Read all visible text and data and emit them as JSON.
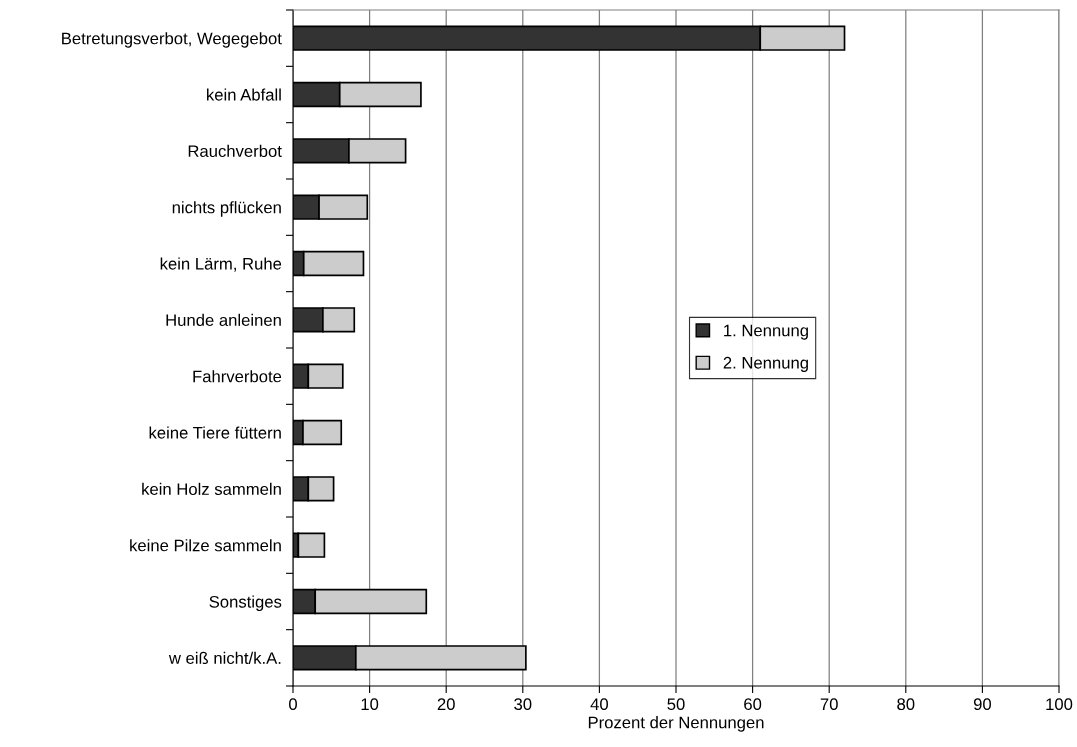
{
  "chart_data": {
    "type": "bar",
    "orientation": "horizontal",
    "stacked": true,
    "xlabel": "Prozent der Nennungen",
    "categories": [
      "Betretungsverbot, Wegegebot",
      "kein Abfall",
      "Rauchverbot",
      "nichts pflücken",
      "kein Lärm, Ruhe",
      "Hunde anleinen",
      "Fahrverbote",
      "keine Tiere füttern",
      "kein Holz sammeln",
      "keine Pilze sammeln",
      "Sonstiges",
      "w eiß nicht/k.A."
    ],
    "series": [
      {
        "name": "1. Nennung",
        "color": "#333333",
        "values": [
          61.0,
          6.1,
          7.3,
          3.4,
          1.4,
          3.9,
          2.0,
          1.3,
          2.0,
          0.7,
          2.9,
          8.2
        ]
      },
      {
        "name": "2. Nennung",
        "color": "#cccccc",
        "values": [
          11.0,
          10.6,
          7.4,
          6.3,
          7.8,
          4.1,
          4.5,
          5.0,
          3.3,
          3.4,
          14.5,
          22.2
        ]
      }
    ],
    "xlim": [
      0,
      100
    ],
    "xticks": [
      0,
      10,
      20,
      30,
      40,
      50,
      60,
      70,
      80,
      90,
      100
    ],
    "grid": "x",
    "legend": "center right"
  }
}
